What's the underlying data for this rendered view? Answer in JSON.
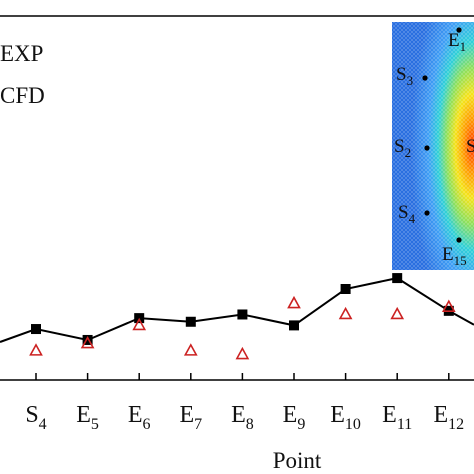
{
  "chart_data": {
    "type": "line",
    "xlabel": "Point",
    "ylabel": "",
    "categories": [
      "S₄",
      "E₅",
      "E₆",
      "E₇",
      "E₈",
      "E₉",
      "E₁₀",
      "E₁₁",
      "E₁₂"
    ],
    "category_labels": [
      {
        "main": "S",
        "sub": "4"
      },
      {
        "main": "E",
        "sub": "5"
      },
      {
        "main": "E",
        "sub": "6"
      },
      {
        "main": "E",
        "sub": "7"
      },
      {
        "main": "E",
        "sub": "8"
      },
      {
        "main": "E",
        "sub": "9"
      },
      {
        "main": "E",
        "sub": "10"
      },
      {
        "main": "E",
        "sub": "11"
      },
      {
        "main": "E",
        "sub": "12"
      }
    ],
    "series": [
      {
        "name": "EXP",
        "marker": "square",
        "line": true,
        "color": "#000000",
        "values": [
          0.14,
          0.11,
          0.17,
          0.16,
          0.18,
          0.15,
          0.25,
          0.28,
          0.19
        ]
      },
      {
        "name": "CFD",
        "marker": "triangle-open",
        "line": false,
        "color": "#cc2222",
        "values": [
          0.08,
          0.1,
          0.15,
          0.08,
          0.07,
          0.21,
          0.18,
          0.18,
          0.2
        ]
      }
    ],
    "ylim": [
      0,
      1
    ],
    "legend_position": "top-left",
    "grid": false,
    "inset": {
      "labels": [
        {
          "main": "E",
          "sub": "1"
        },
        {
          "main": "S",
          "sub": "3"
        },
        {
          "main": "S",
          "sub": "2"
        },
        {
          "main": "S",
          "sub": ""
        },
        {
          "main": "S",
          "sub": "4"
        },
        {
          "main": "E",
          "sub": "15"
        }
      ]
    }
  }
}
